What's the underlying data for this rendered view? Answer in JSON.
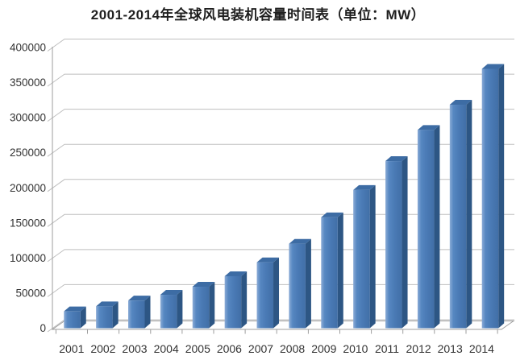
{
  "chart_data": {
    "type": "bar",
    "style": "3d-column",
    "title": "2001-2014年全球风电装机容量时间表（单位：MW）",
    "xlabel": "",
    "ylabel": "",
    "categories": [
      "2001",
      "2002",
      "2003",
      "2004",
      "2005",
      "2006",
      "2007",
      "2008",
      "2009",
      "2010",
      "2011",
      "2012",
      "2013",
      "2014"
    ],
    "values": [
      23900,
      31100,
      39400,
      47600,
      59100,
      74100,
      93900,
      120300,
      157900,
      197000,
      238100,
      282500,
      318500,
      369600
    ],
    "ylim": [
      0,
      400000
    ],
    "ytick_step": 50000,
    "ytick_labels": [
      "0",
      "50000",
      "100000",
      "150000",
      "200000",
      "250000",
      "300000",
      "350000",
      "400000"
    ],
    "grid": true,
    "legend": "none",
    "colors": {
      "bar_front": "#4a7ab5",
      "bar_front_highlight": "#8aabd6",
      "bar_front_dark": "#416fa7",
      "bar_side": "#2d5684",
      "bar_top": "#3d6ca4",
      "gridline": "#bfbfbf",
      "axis": "#9e9e9e",
      "text": "#333333",
      "background": "#ffffff"
    }
  }
}
